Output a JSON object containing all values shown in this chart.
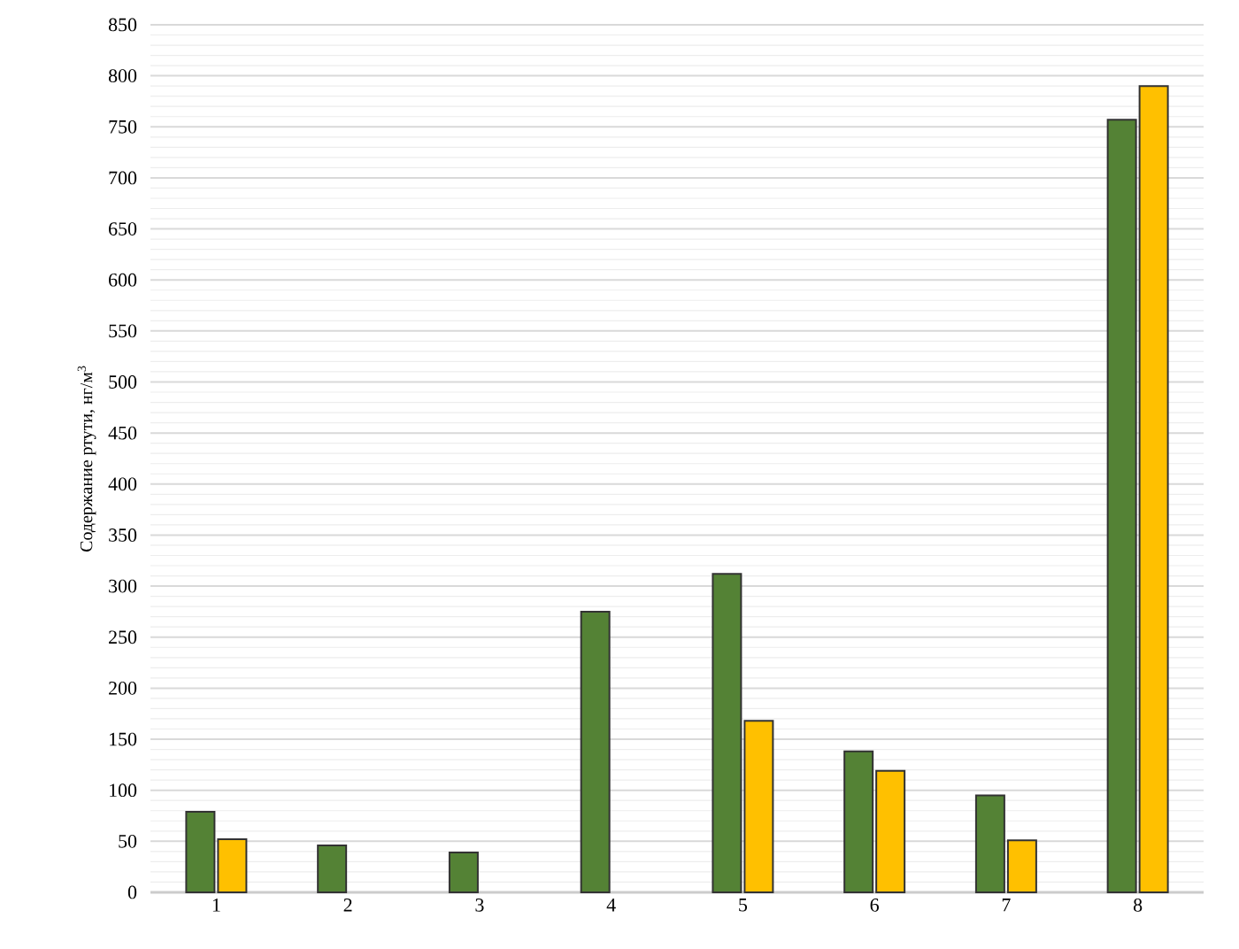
{
  "chart_data": {
    "type": "bar",
    "ylabel": "Содержание ртути, нг/м$^{3}$",
    "categories": [
      "1",
      "2",
      "3",
      "4",
      "5",
      "6",
      "7",
      "8"
    ],
    "series": [
      {
        "color": "#548235",
        "values": [
          79,
          46,
          39,
          275,
          312,
          138,
          95,
          757
        ]
      },
      {
        "color": "#ffc000",
        "values": [
          52,
          null,
          null,
          null,
          168,
          119,
          51,
          790
        ]
      }
    ],
    "ylim": [
      0,
      850
    ],
    "yticks": [
      0,
      50,
      100,
      150,
      200,
      250,
      300,
      350,
      400,
      450,
      500,
      550,
      600,
      650,
      700,
      750,
      800,
      850
    ],
    "grid": "y"
  }
}
